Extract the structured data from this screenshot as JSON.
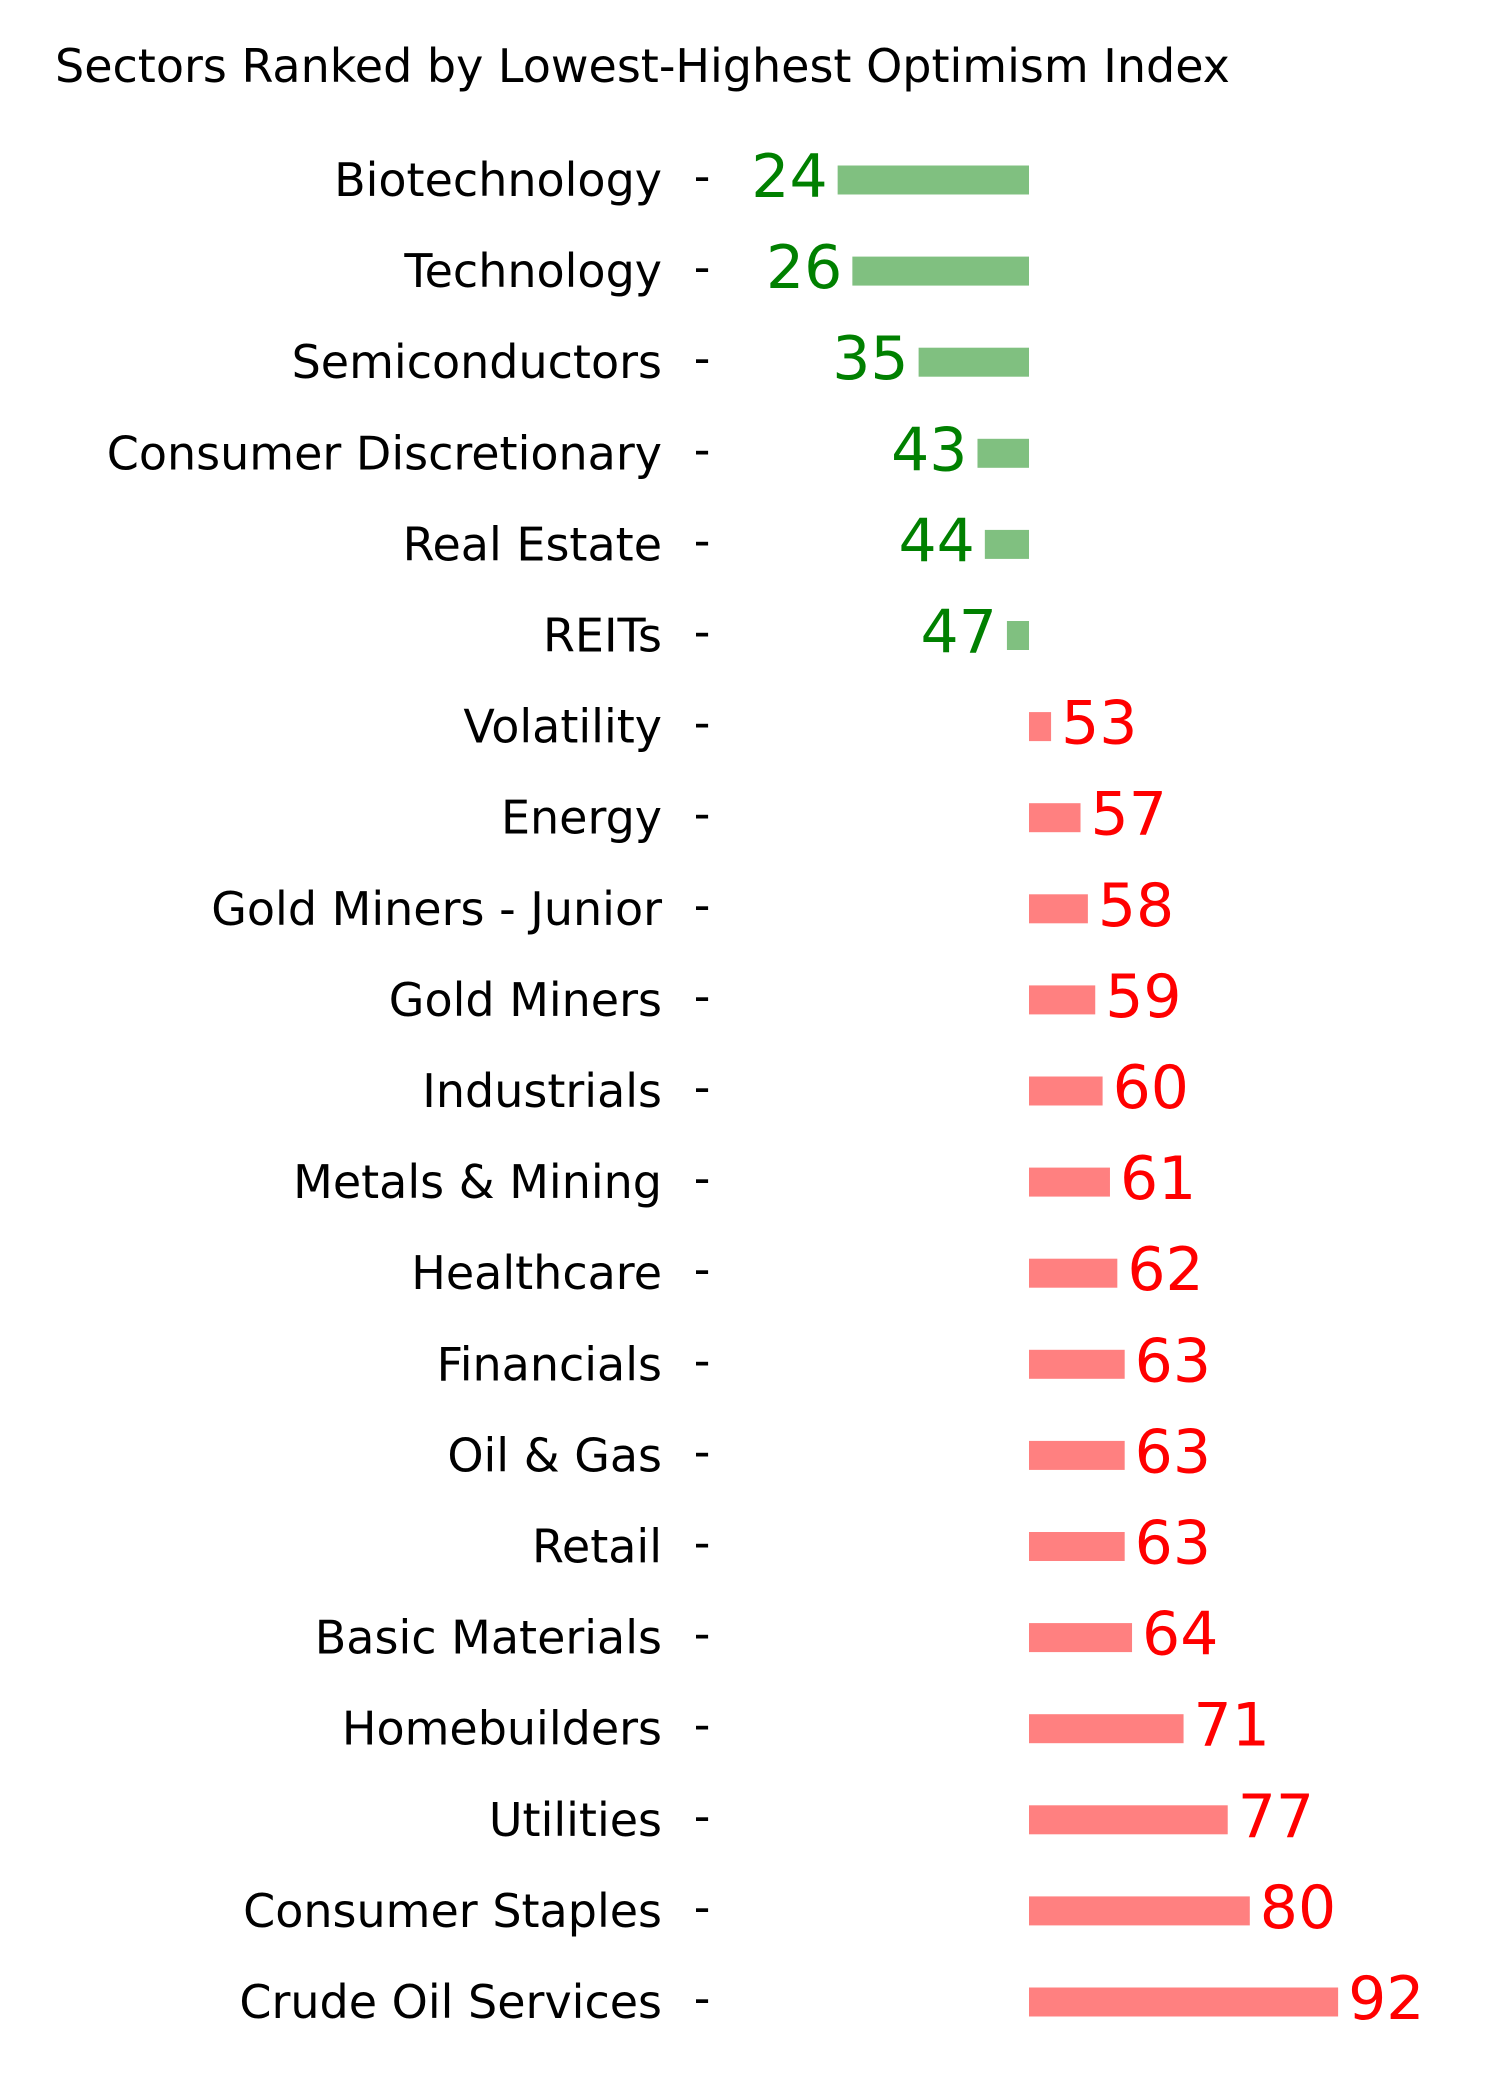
{
  "chart_data": {
    "type": "bar",
    "orientation": "horizontal",
    "title": "Sectors Ranked by Lowest-Highest Optimism Index",
    "baseline": 50,
    "categories": [
      "Biotechnology",
      "Technology",
      "Semiconductors",
      "Consumer Discretionary",
      "Real Estate",
      "REITs",
      "Volatility",
      "Energy",
      "Gold Miners - Junior",
      "Gold Miners",
      "Industrials",
      "Metals & Mining",
      "Healthcare",
      "Financials",
      "Oil & Gas",
      "Retail",
      "Basic Materials",
      "Homebuilders",
      "Utilities",
      "Consumer Staples",
      "Crude Oil Services"
    ],
    "values": [
      24,
      26,
      35,
      43,
      44,
      47,
      53,
      57,
      58,
      59,
      60,
      61,
      62,
      63,
      63,
      63,
      64,
      71,
      77,
      80,
      92
    ],
    "grid": false,
    "legend": "none",
    "colors": {
      "below_bar": "#80c080",
      "below_text": "#008000",
      "above_bar": "#ff8080",
      "above_text": "#ff0000"
    }
  }
}
